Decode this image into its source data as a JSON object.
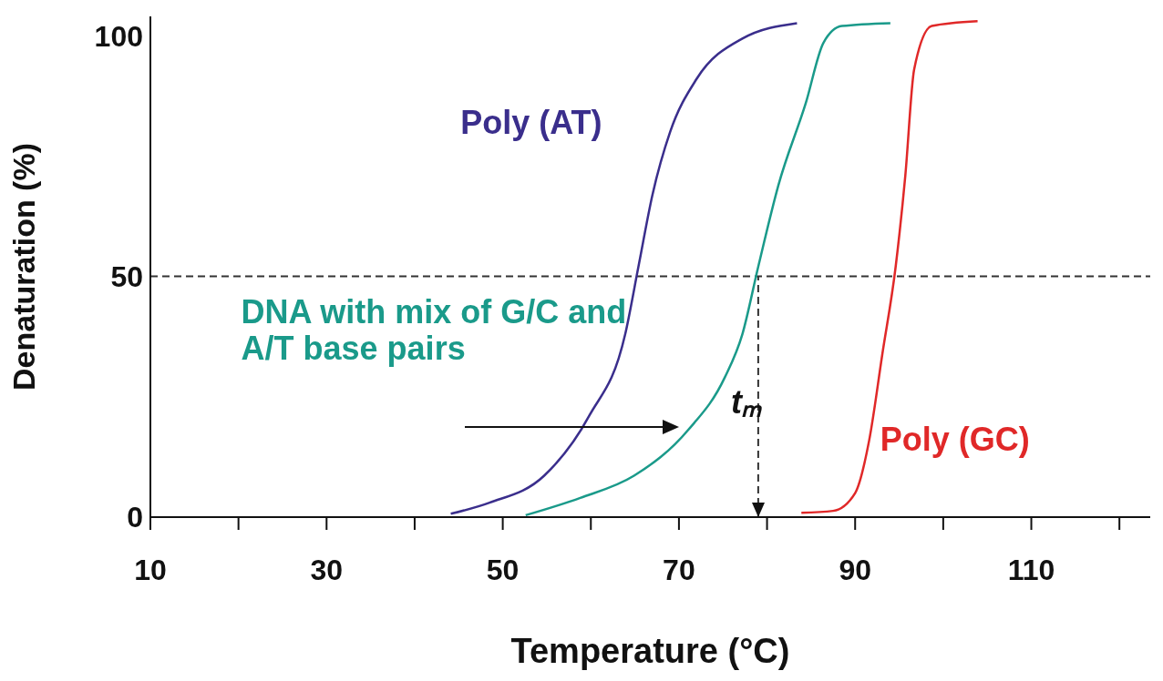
{
  "chart_data": {
    "type": "line",
    "xlabel": "Temperature (°C)",
    "ylabel": "Denaturation (%)",
    "xlim": [
      10,
      123.5
    ],
    "ylim": [
      0,
      104
    ],
    "xticks": [
      10,
      {
        "value": 20,
        "label": null
      },
      30,
      {
        "value": 40,
        "label": null
      },
      50,
      {
        "value": 60,
        "label": null
      },
      70,
      {
        "value": 80,
        "label": null
      },
      90,
      {
        "value": 100,
        "label": null
      },
      110,
      {
        "value": 120,
        "label": null
      }
    ],
    "yticks": [
      0,
      50,
      100
    ],
    "marker": "none",
    "line_style": "solid",
    "series": [
      {
        "name": "Poly (AT)",
        "color": "#3a2e8c",
        "x": [
          44.1,
          48.5,
          54.7,
          59.8,
          63.9,
          65.4,
          67,
          69,
          72,
          77.2,
          83.4
        ],
        "values": [
          0.7,
          3,
          8.6,
          21,
          38,
          52,
          67,
          80,
          91,
          99.4,
          102.6
        ]
      },
      {
        "name": "DNA with mix of G/C and A/T base pairs",
        "color": "#1a9a8a",
        "x": [
          52.6,
          58.8,
          64.9,
          71,
          75.2,
          77.2,
          79,
          81.3,
          84.4,
          86.4,
          88.5,
          94
        ],
        "values": [
          0.4,
          4,
          8.6,
          18,
          29,
          38,
          52,
          69,
          86,
          98.5,
          102,
          102.6
        ]
      },
      {
        "name": "Poly (GC)",
        "color": "#e02828",
        "x": [
          83.9,
          87.5,
          90,
          91.6,
          93.1,
          94.6,
          95.7,
          96.7,
          98.7,
          103.9
        ],
        "values": [
          0.9,
          1.3,
          5,
          16,
          34,
          52,
          71,
          93,
          102,
          103
        ]
      }
    ],
    "ref_lines": [
      {
        "axis": "y",
        "value": 50,
        "line_style": "dashed",
        "color": "#333333"
      },
      {
        "axis": "x",
        "value": 79,
        "label": "tₘ",
        "line_style": "dashed",
        "color": "#333333"
      }
    ]
  }
}
